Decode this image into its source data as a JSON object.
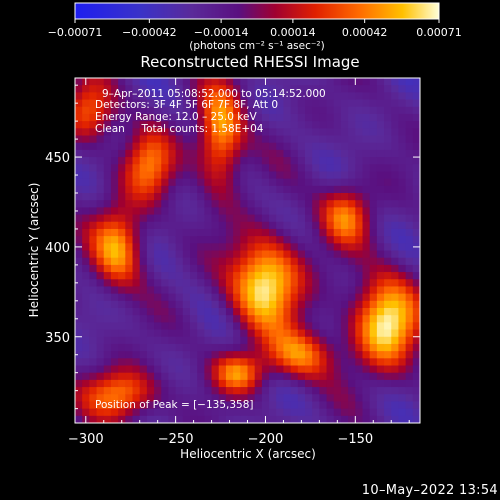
{
  "chart_data": {
    "type": "heatmap",
    "title": "Reconstructed RHESSI Image",
    "xlabel": "Heliocentric X (arcsec)",
    "ylabel": "Heliocentric Y (arcsec)",
    "xlim": [
      -306,
      -114
    ],
    "ylim": [
      302,
      494
    ],
    "x_ticks": [
      -300,
      -250,
      -200,
      -150
    ],
    "y_ticks": [
      350,
      400,
      450
    ],
    "x_tick_labels": [
      "−300",
      "−250",
      "−200",
      "−150"
    ],
    "y_tick_labels": [
      "350",
      "400",
      "450"
    ],
    "colorbar": {
      "min": -0.00071,
      "max": 0.00071,
      "ticks": [
        -0.00071,
        -0.00042,
        -0.00014,
        0.00014,
        0.00042,
        0.00071
      ],
      "tick_labels": [
        "−0.00071",
        "−0.00042",
        "−0.00014",
        "0.00014",
        "0.00042",
        "0.00071"
      ],
      "units_label": "(photons cm⁻² s⁻¹ asec⁻²)"
    },
    "annotations": [
      "9–Apr–2011 05:08:52.000 to 05:14:52.000",
      "Detectors: 3F 4F 5F 6F 7F 8F, Att 0",
      "Energy Range: 12.0 – 25.0 keV",
      "Clean     Total counts: 1.58E+04"
    ],
    "peak_label": "Position of Peak = [−135,358]",
    "peak_position": [
      -135,
      358
    ],
    "sources": [
      {
        "x": -200,
        "y": 380,
        "peak": 0.00071,
        "sx": 14,
        "sy": 18
      },
      {
        "x": -133,
        "y": 358,
        "peak": 0.00068,
        "sx": 13,
        "sy": 18
      },
      {
        "x": -225,
        "y": 462,
        "peak": 0.00055,
        "sx": 9,
        "sy": 20
      },
      {
        "x": -282,
        "y": 400,
        "peak": 0.00048,
        "sx": 10,
        "sy": 16
      },
      {
        "x": -265,
        "y": 445,
        "peak": 0.00038,
        "sx": 10,
        "sy": 14
      },
      {
        "x": -280,
        "y": 318,
        "peak": 0.00045,
        "sx": 14,
        "sy": 10
      },
      {
        "x": -215,
        "y": 330,
        "peak": 0.0004,
        "sx": 10,
        "sy": 8
      },
      {
        "x": -155,
        "y": 418,
        "peak": 0.00036,
        "sx": 10,
        "sy": 12
      },
      {
        "x": -298,
        "y": 475,
        "peak": 0.00034,
        "sx": 10,
        "sy": 12
      },
      {
        "x": -180,
        "y": 340,
        "peak": 0.00038,
        "sx": 14,
        "sy": 10
      }
    ],
    "grid": false
  },
  "footer": {
    "timestamp": "10–May–2022 13:54"
  }
}
